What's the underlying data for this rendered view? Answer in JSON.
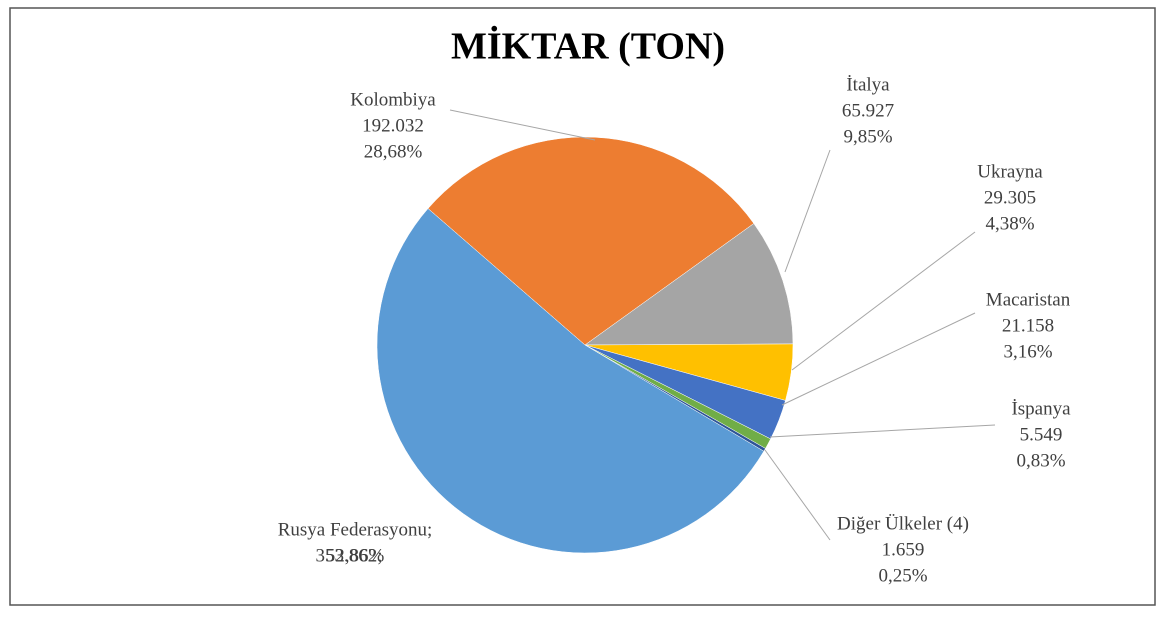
{
  "chart_data": {
    "type": "pie",
    "title": "MİKTAR  (TON)",
    "categories": [
      "Kolombiya",
      "İtalya",
      "Ukrayna",
      "Macaristan",
      "İspanya",
      "Diğer Ülkeler (4)",
      "Rusya Federasyonu;"
    ],
    "values": [
      192032,
      65927,
      29305,
      21158,
      5549,
      1659,
      353862
    ],
    "value_labels": [
      "192.032",
      "65.927",
      "29.305",
      "21.158",
      "5.549",
      "1.659",
      "353.862;"
    ],
    "percents": [
      28.68,
      9.85,
      4.38,
      3.16,
      0.83,
      0.25,
      52.86
    ],
    "percent_labels": [
      "28,68%",
      "9,85%",
      "4,38%",
      "3,16%",
      "0,83%",
      "0,25%",
      "52,86%"
    ],
    "colors": [
      "#ed7d31",
      "#a5a5a5",
      "#ffc000",
      "#4472c4",
      "#70ad47",
      "#2f5597",
      "#5b9bd5"
    ]
  }
}
